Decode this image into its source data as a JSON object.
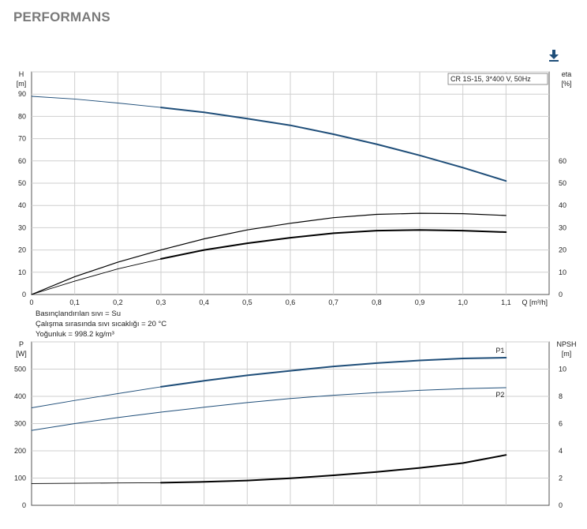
{
  "page": {
    "title": "PERFORMANS"
  },
  "toolbar": {
    "download_icon": "download-icon",
    "accent_color": "#1f4e79"
  },
  "fluid_info": {
    "liquid": "Basınçlandırılan sıvı = Su",
    "temperature": "Çalışma sırasında sıvı sıcaklığı = 20 °C",
    "density": "Yoğunluk = 998.2 kg/m³"
  },
  "chart_data": [
    {
      "type": "line",
      "id": "head-efficiency",
      "legend": "CR 1S-15, 3*400 V, 50Hz",
      "x_label": "Q [m³/h]",
      "y_left_label": [
        "H",
        "[m]"
      ],
      "y_right_label": [
        "eta",
        "[%]"
      ],
      "x_ticks": [
        "0",
        "0,1",
        "0,2",
        "0,3",
        "0,4",
        "0,5",
        "0,6",
        "0,7",
        "0,8",
        "0,9",
        "1,0",
        "1,1"
      ],
      "y_left_ticks": [
        "0",
        "10",
        "20",
        "30",
        "40",
        "50",
        "60",
        "70",
        "80",
        "90"
      ],
      "y_right_ticks": [
        "0",
        "10",
        "20",
        "30",
        "40",
        "50",
        "60"
      ],
      "xlim": [
        0,
        1.2
      ],
      "y_left_lim": [
        0,
        100
      ],
      "y_right_lim": [
        0,
        100
      ],
      "grid": true,
      "series": [
        {
          "key": "head_thin",
          "axis": "left",
          "color": "#1f4e79",
          "width": 0.9,
          "x": [
            0,
            0.1,
            0.2,
            0.3
          ],
          "y": [
            89,
            87.8,
            86,
            84
          ]
        },
        {
          "key": "head",
          "axis": "left",
          "color": "#1f4e79",
          "width": 2,
          "x": [
            0.3,
            0.4,
            0.5,
            0.6,
            0.7,
            0.8,
            0.9,
            1.0,
            1.1
          ],
          "y": [
            84,
            81.8,
            79,
            76,
            72,
            67.5,
            62.5,
            57,
            51
          ]
        },
        {
          "key": "eta_thin",
          "axis": "right",
          "color": "#000000",
          "width": 0.9,
          "x": [
            0,
            0.1,
            0.2,
            0.3
          ],
          "y": [
            0,
            6,
            11.5,
            16
          ]
        },
        {
          "key": "eta",
          "axis": "right",
          "color": "#000000",
          "width": 2,
          "x": [
            0.3,
            0.4,
            0.5,
            0.6,
            0.7,
            0.8,
            0.9,
            1.0,
            1.1
          ],
          "y": [
            16,
            20,
            23,
            25.5,
            27.5,
            28.7,
            29,
            28.7,
            28
          ]
        },
        {
          "key": "upper",
          "axis": "left",
          "color": "#000000",
          "width": 1.2,
          "x": [
            0,
            0.1,
            0.2,
            0.3,
            0.4,
            0.5,
            0.6,
            0.7,
            0.8,
            0.9,
            1.0,
            1.1
          ],
          "y": [
            0,
            8,
            14.5,
            20,
            25,
            29,
            32,
            34.5,
            36,
            36.5,
            36.3,
            35.5
          ]
        }
      ]
    },
    {
      "type": "line",
      "id": "power-npsh",
      "y_left_label": [
        "P",
        "[W]"
      ],
      "y_right_label": [
        "NPSH",
        "[m]"
      ],
      "x_ticks": [
        "0",
        "0,1",
        "0,2",
        "0,3",
        "0,4",
        "0,5",
        "0,6",
        "0,7",
        "0,8",
        "0,9",
        "1,0",
        "1,1"
      ],
      "y_left_ticks": [
        "0",
        "100",
        "200",
        "300",
        "400",
        "500"
      ],
      "y_right_ticks": [
        "0",
        "2",
        "4",
        "6",
        "8",
        "10"
      ],
      "xlim": [
        0,
        1.2
      ],
      "y_left_lim": [
        0,
        600
      ],
      "y_right_lim": [
        0,
        12
      ],
      "grid": true,
      "series": [
        {
          "key": "p1_thin",
          "axis": "left",
          "color": "#1f4e79",
          "width": 0.9,
          "x": [
            0,
            0.1,
            0.2,
            0.3
          ],
          "y": [
            358,
            385,
            410,
            435
          ]
        },
        {
          "key": "p1",
          "name": "P1",
          "axis": "left",
          "color": "#1f4e79",
          "width": 2,
          "x": [
            0.3,
            0.4,
            0.5,
            0.6,
            0.7,
            0.8,
            0.9,
            1.0,
            1.1
          ],
          "y": [
            435,
            457,
            477,
            494,
            510,
            522,
            532,
            539,
            542
          ]
        },
        {
          "key": "p2",
          "name": "P2",
          "axis": "left",
          "color": "#1f4e79",
          "width": 1,
          "x": [
            0,
            0.1,
            0.2,
            0.3,
            0.4,
            0.5,
            0.6,
            0.7,
            0.8,
            0.9,
            1.0,
            1.1
          ],
          "y": [
            275,
            300,
            322,
            342,
            360,
            377,
            392,
            404,
            414,
            422,
            428,
            432
          ]
        },
        {
          "key": "npsh_thin",
          "axis": "right",
          "color": "#000000",
          "width": 0.9,
          "x": [
            0,
            0.1,
            0.2,
            0.3
          ],
          "y": [
            1.6,
            1.62,
            1.64,
            1.66
          ]
        },
        {
          "key": "npsh",
          "axis": "right",
          "color": "#000000",
          "width": 2,
          "x": [
            0.3,
            0.4,
            0.5,
            0.6,
            0.7,
            0.8,
            0.9,
            1.0,
            1.05,
            1.1
          ],
          "y": [
            1.66,
            1.72,
            1.82,
            1.98,
            2.2,
            2.45,
            2.75,
            3.1,
            3.4,
            3.7
          ]
        }
      ]
    }
  ]
}
